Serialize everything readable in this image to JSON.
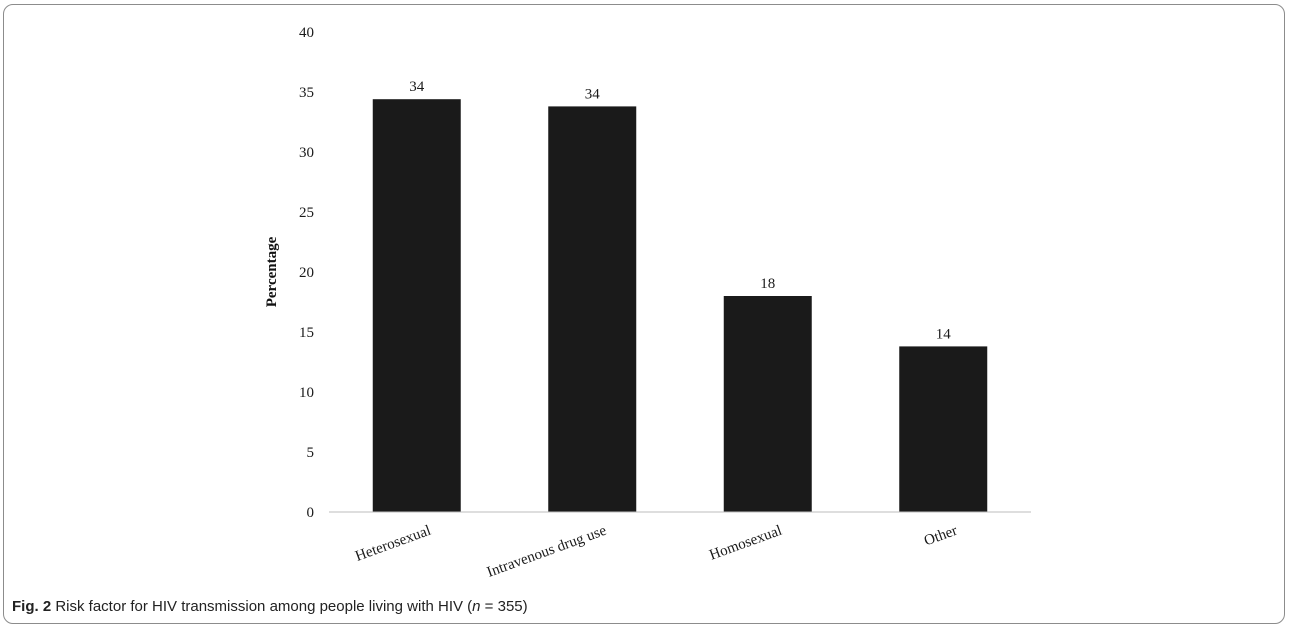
{
  "caption": {
    "label": "Fig. 2",
    "text_before": "Risk factor for HIV transmission among people living with HIV (",
    "n_var": "n",
    "text_after": " = 355)"
  },
  "chart_data": {
    "type": "bar",
    "title": "",
    "xlabel": "",
    "ylabel": "Percentage",
    "ylim": [
      0,
      40
    ],
    "yticks": [
      0,
      5,
      10,
      15,
      20,
      25,
      30,
      35,
      40
    ],
    "grid": false,
    "categories": [
      "Heterosexual",
      "Intravenous drug use",
      "Homosexual",
      "Other"
    ],
    "values": [
      34.4,
      33.8,
      18.0,
      13.8
    ],
    "data_labels": [
      "34",
      "34",
      "18",
      "14"
    ],
    "bar_color": "#1a1a1a"
  }
}
